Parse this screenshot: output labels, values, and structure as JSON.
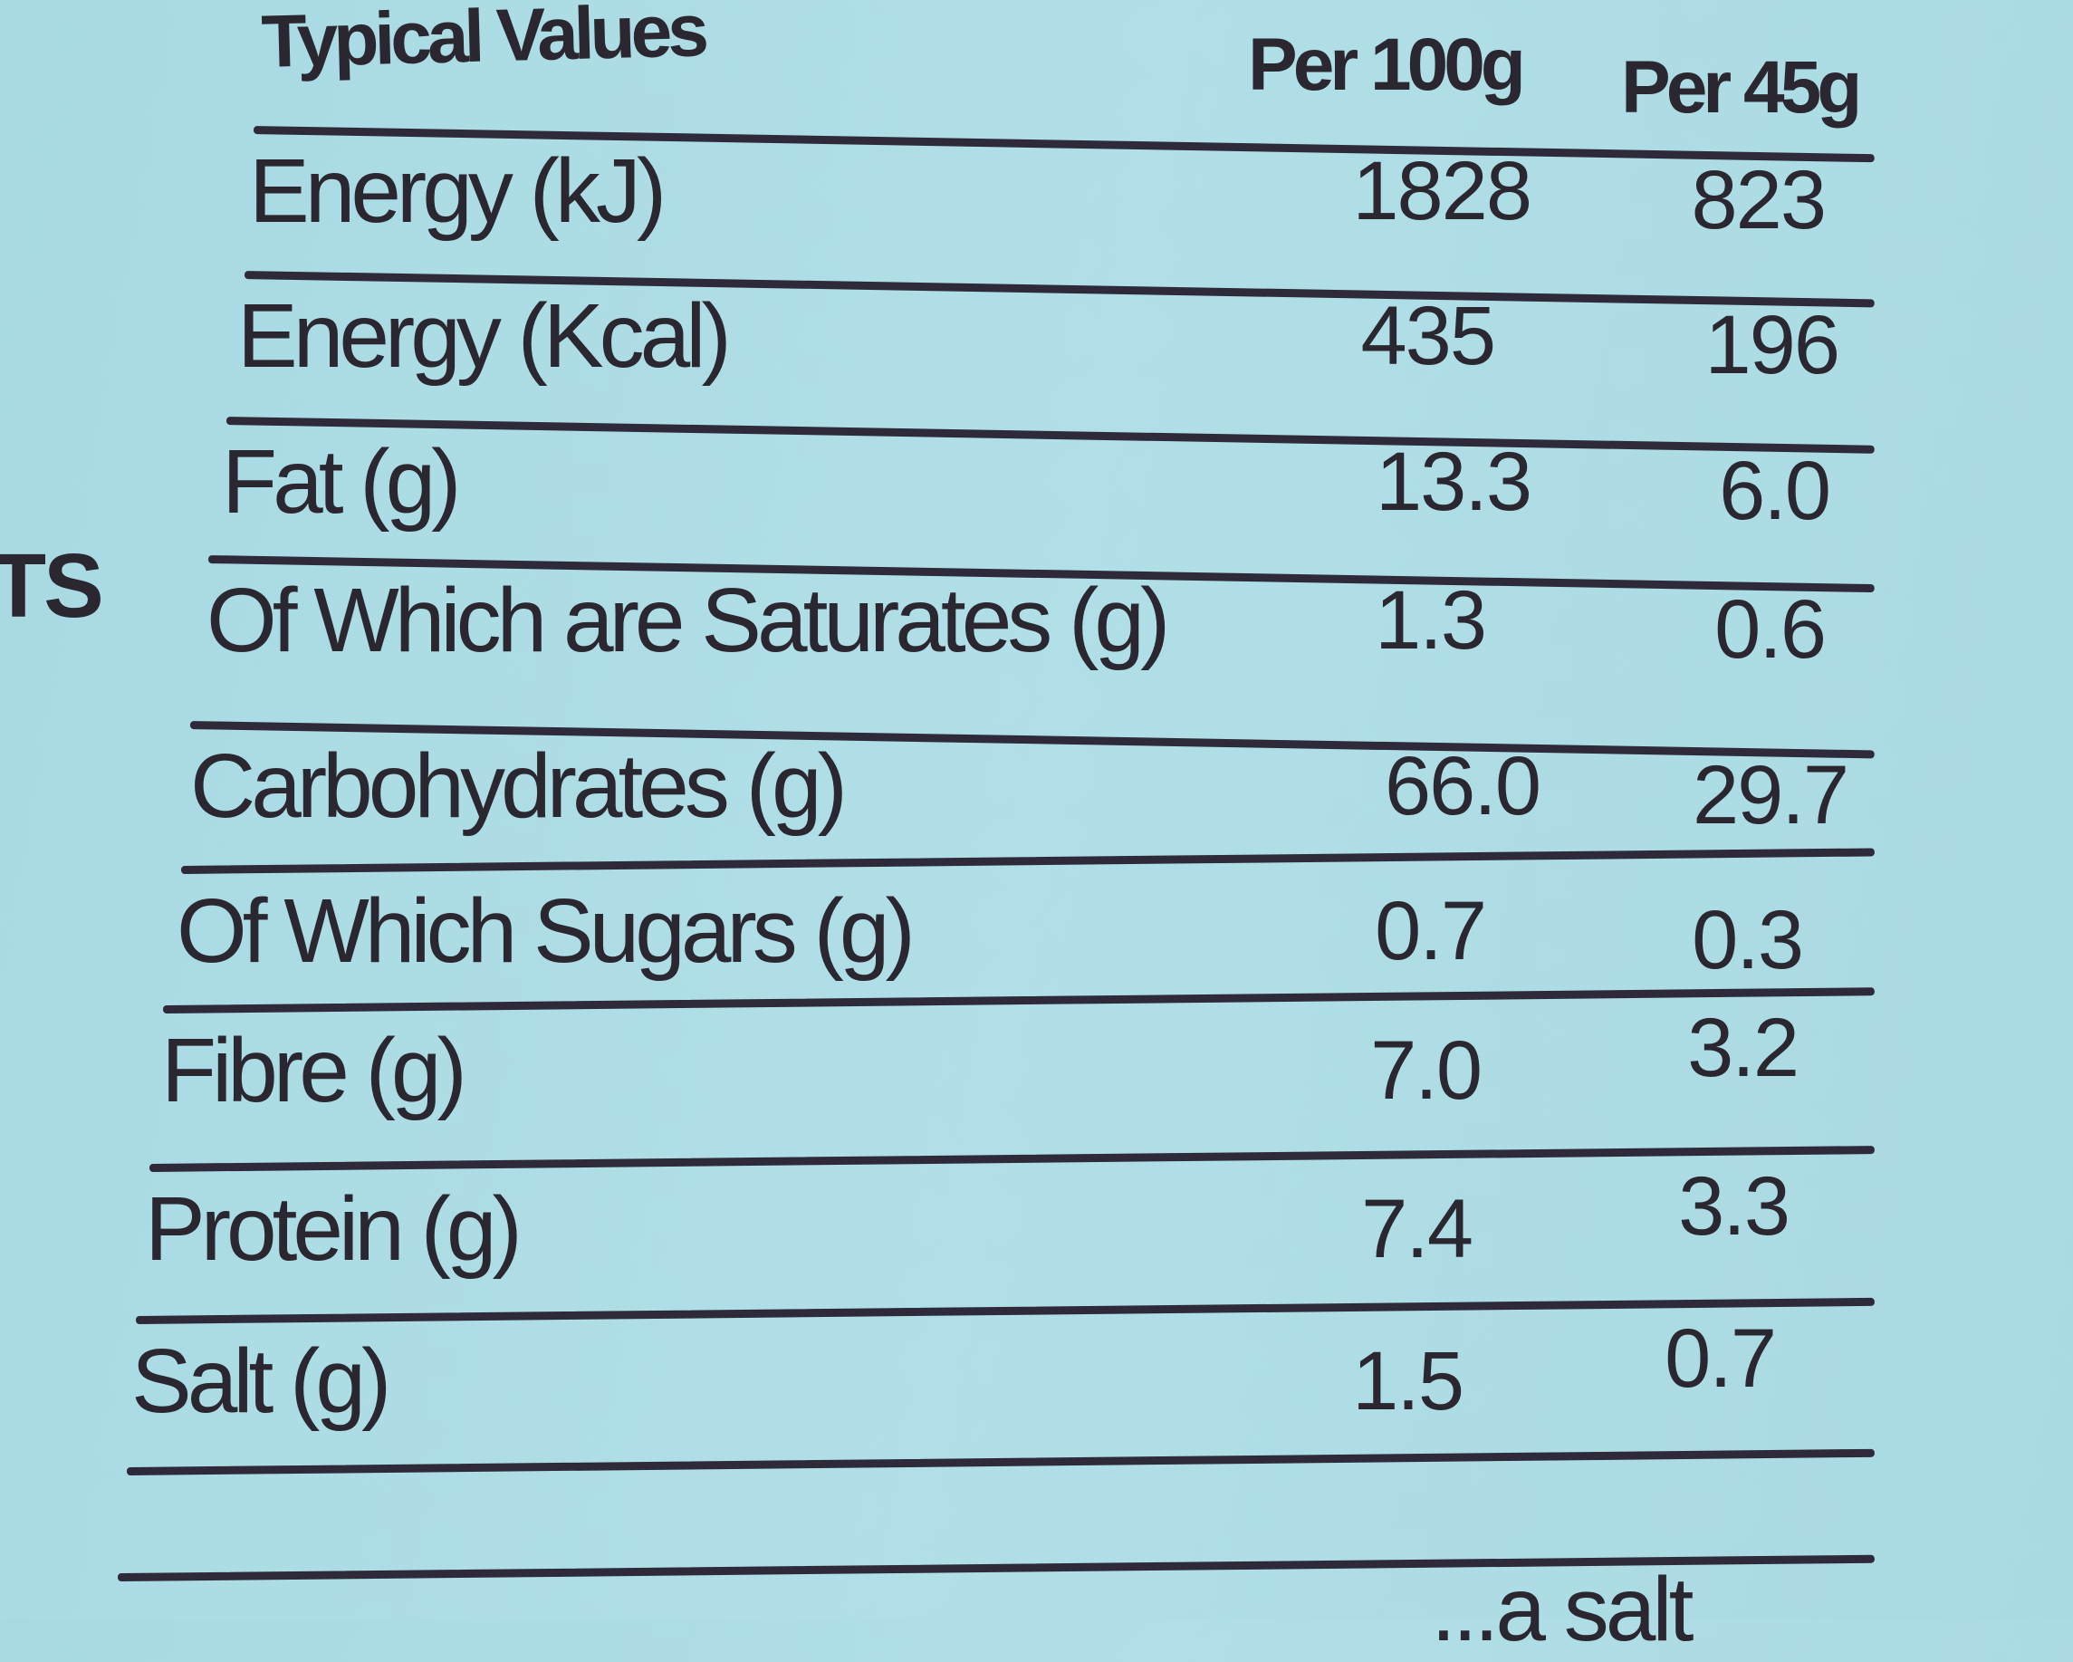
{
  "side_text": "TS",
  "header": {
    "label": "Typical Values",
    "col1": "Per 100g",
    "col2": "Per 45g"
  },
  "rows": [
    {
      "label": "Energy (kJ)",
      "per100g": "1828",
      "per45g": "823"
    },
    {
      "label": "Energy (Kcal)",
      "per100g": "435",
      "per45g": "196"
    },
    {
      "label": "Fat (g)",
      "per100g": "13.3",
      "per45g": "6.0"
    },
    {
      "label": "Of Which are Saturates (g)",
      "per100g": "1.3",
      "per45g": "0.6"
    },
    {
      "label": "Carbohydrates (g)",
      "per100g": "66.0",
      "per45g": "29.7"
    },
    {
      "label": "Of Which Sugars (g)",
      "per100g": "0.7",
      "per45g": "0.3"
    },
    {
      "label": "Fibre (g)",
      "per100g": "7.0",
      "per45g": "3.2"
    },
    {
      "label": "Protein (g)",
      "per100g": "7.4",
      "per45g": "3.3"
    },
    {
      "label": "Salt (g)",
      "per100g": "1.5",
      "per45g": "0.7"
    }
  ],
  "footer_partial": "...a salt",
  "colors": {
    "background": "#aedce5",
    "ink": "#2b2730"
  }
}
